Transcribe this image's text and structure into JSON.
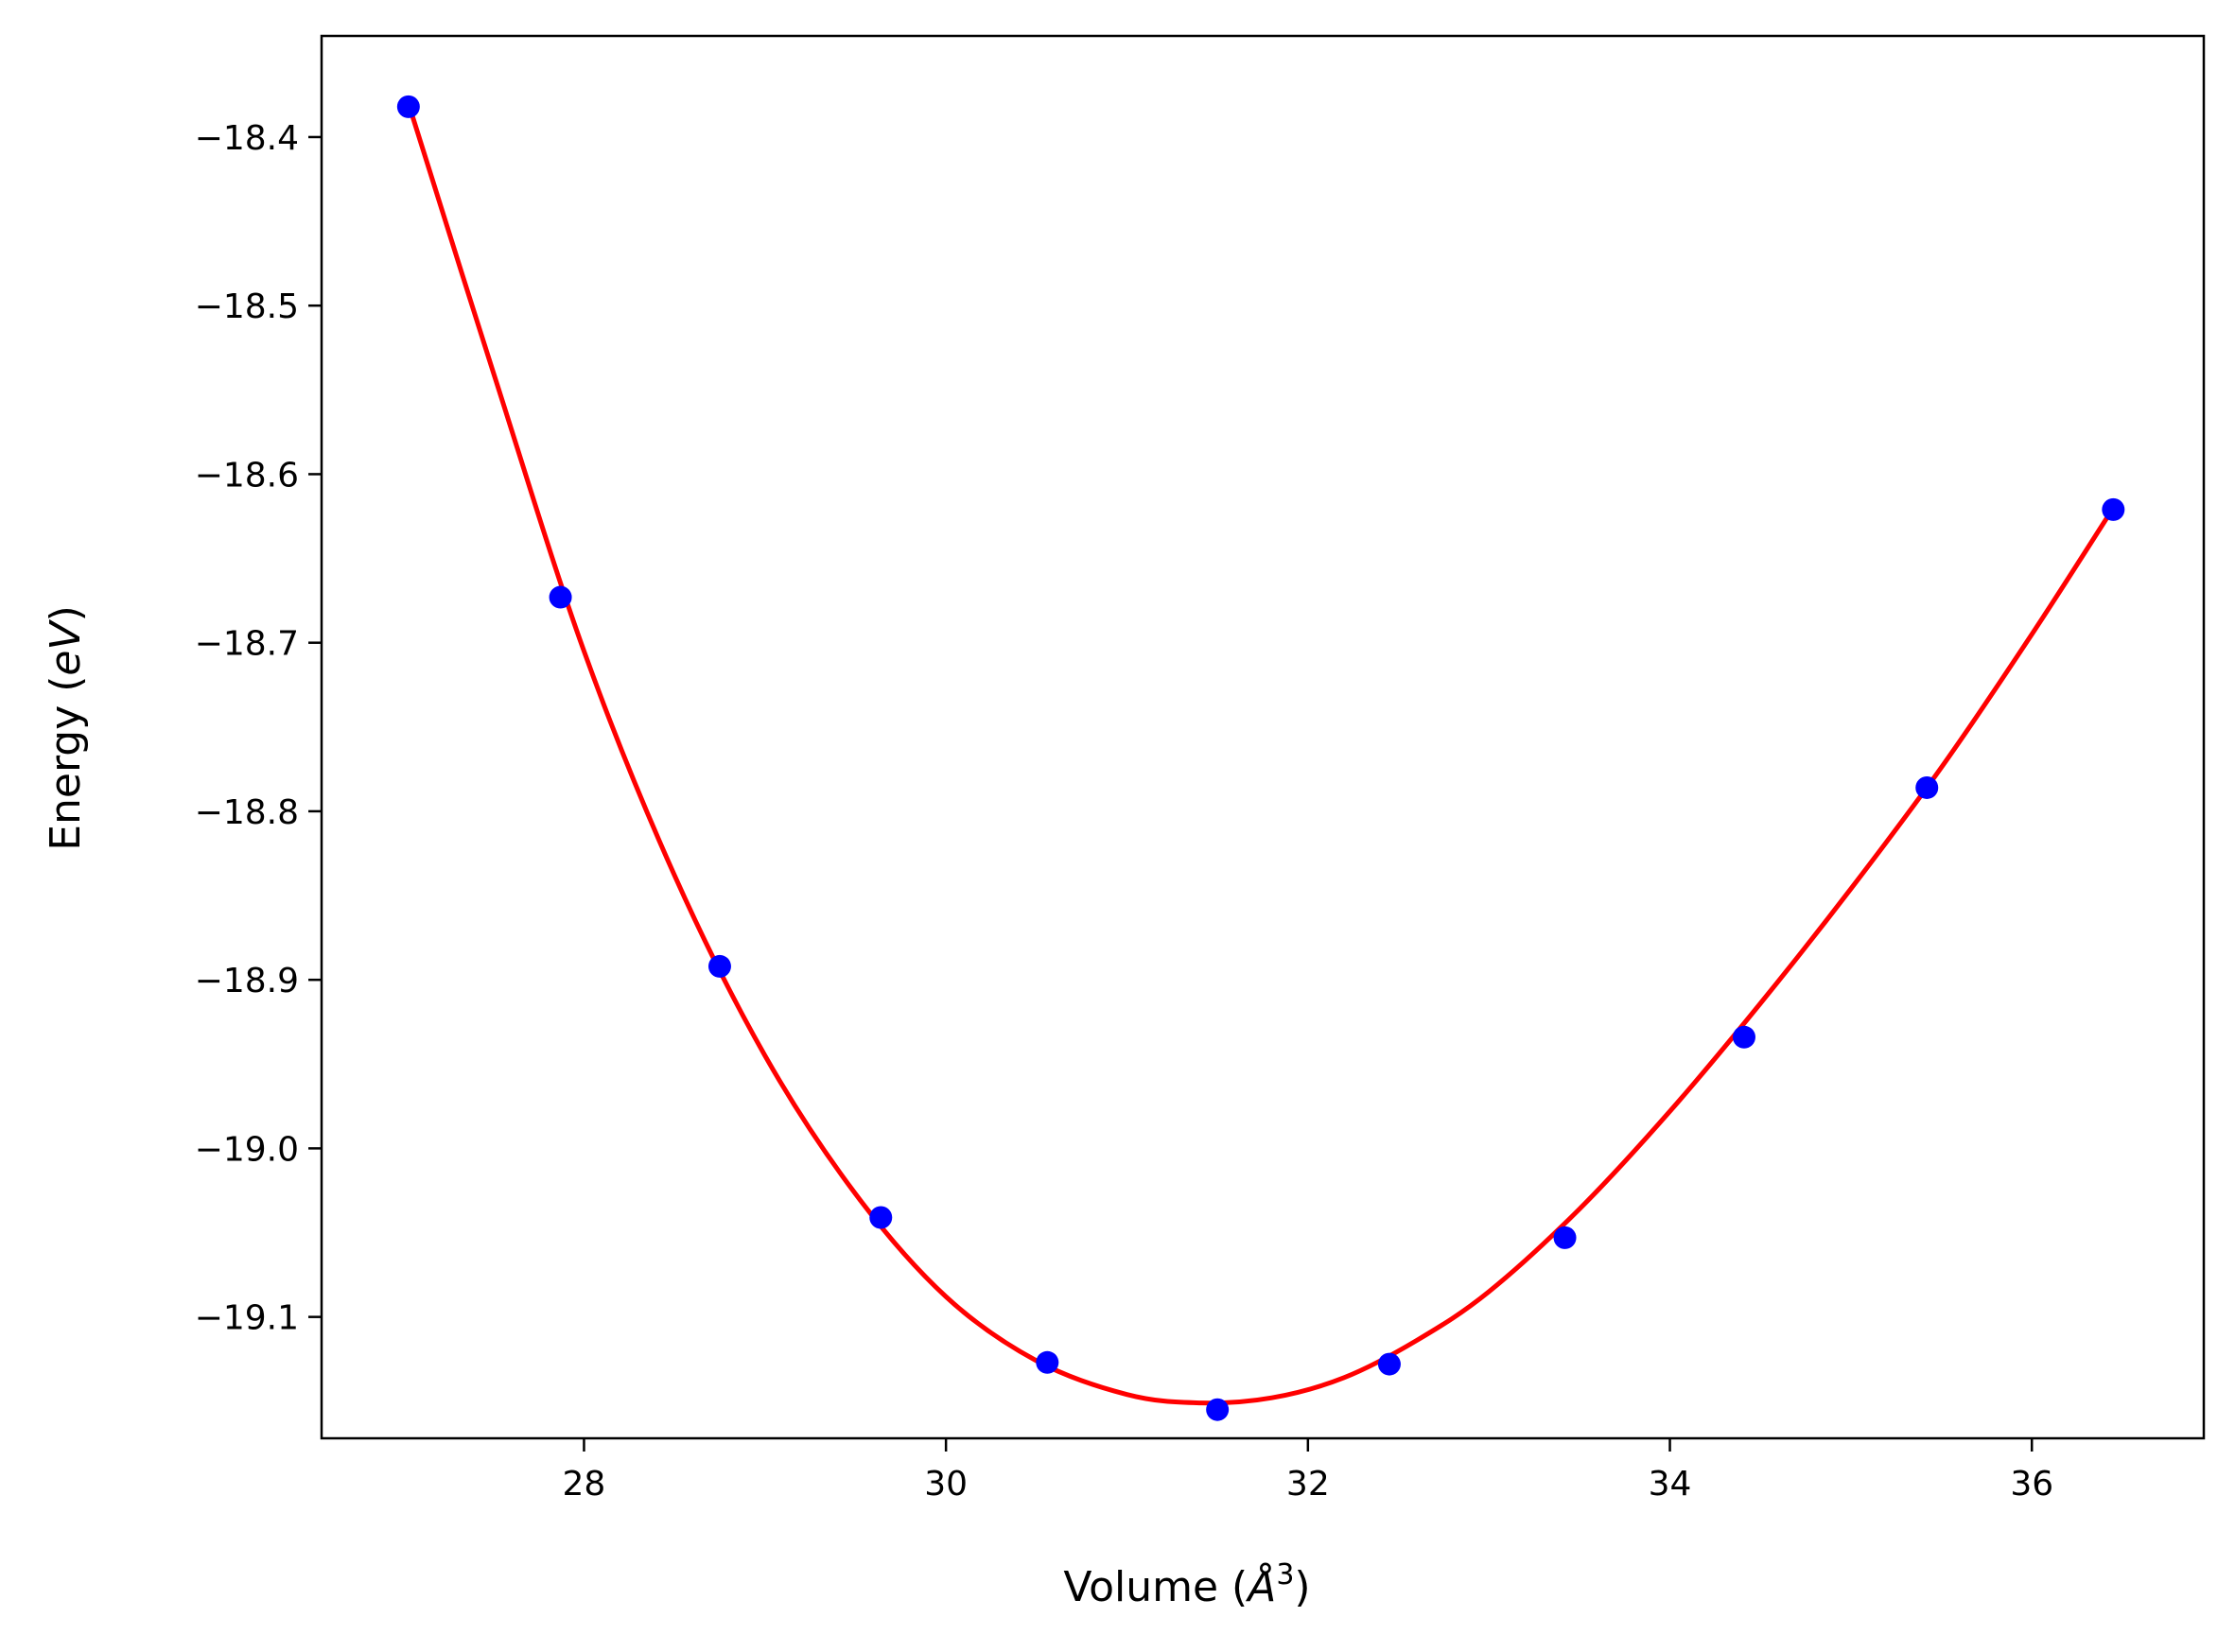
{
  "chart_data": {
    "type": "scatter",
    "title": "",
    "xlabel": {
      "prefix": "Volume (",
      "var": "Å",
      "sup": "3",
      "suffix": ")"
    },
    "ylabel": {
      "prefix": "Energy (",
      "var": "eV",
      "suffix": ")"
    },
    "xlim": [
      26.55,
      36.95
    ],
    "ylim": [
      -19.172,
      -18.34
    ],
    "xticks": [
      28,
      30,
      32,
      34,
      36
    ],
    "yticks": [
      -18.4,
      -18.5,
      -18.6,
      -18.7,
      -18.8,
      -18.9,
      -19.0,
      -19.1
    ],
    "xtick_labels": [
      "28",
      "30",
      "32",
      "34",
      "36"
    ],
    "ytick_labels": [
      "−18.4",
      "−18.5",
      "−18.6",
      "−18.7",
      "−18.8",
      "−18.9",
      "−19.0",
      "−19.1"
    ],
    "grid": false,
    "series": [
      {
        "kind": "points",
        "color": "#0000ff",
        "x": [
          27.03,
          27.87,
          28.75,
          29.64,
          30.56,
          31.5,
          32.45,
          33.42,
          34.41,
          35.42,
          36.45
        ],
        "y": [
          -18.382,
          -18.673,
          -18.892,
          -19.041,
          -19.127,
          -19.155,
          -19.128,
          -19.053,
          -18.934,
          -18.786,
          -18.621
        ]
      },
      {
        "kind": "fit-curve",
        "color": "#ff0000",
        "x": [
          27.03,
          27.5,
          28.0,
          28.5,
          29.0,
          29.5,
          30.0,
          30.5,
          31.0,
          31.4,
          31.8,
          32.2,
          32.6,
          33.0,
          33.5,
          34.0,
          34.5,
          35.0,
          35.5,
          36.0,
          36.45
        ],
        "y": [
          -18.38,
          -18.54,
          -18.705,
          -18.838,
          -18.945,
          -19.027,
          -19.088,
          -19.126,
          -19.146,
          -19.151,
          -19.148,
          -19.136,
          -19.114,
          -19.085,
          -19.036,
          -18.978,
          -18.914,
          -18.846,
          -18.774,
          -18.695,
          -18.62
        ]
      }
    ]
  }
}
